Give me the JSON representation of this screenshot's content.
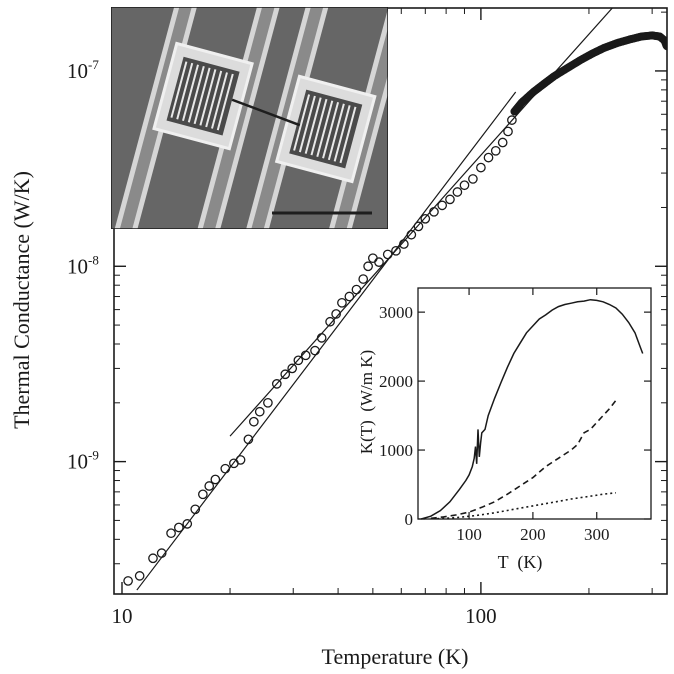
{
  "colors": {
    "ink": "#1a1a1a",
    "paper": "#ffffff",
    "photo_bg": "#6f6f6f",
    "photo_metal": "#d9d9d9"
  },
  "chart_data": [
    {
      "type": "scatter",
      "title": "",
      "xlabel": "Temperature (K)",
      "ylabel": "Thermal Conductance (W/K)",
      "xscale": "log",
      "yscale": "log",
      "xlim": [
        9.5,
        330
      ],
      "ylim": [
        2.1e-10,
        2.1e-07
      ],
      "xticks": [
        {
          "value": 10,
          "label": "10"
        },
        {
          "value": 100,
          "label": "100"
        }
      ],
      "yticks": [
        {
          "value": 1e-09,
          "base": "10",
          "exp": "-9"
        },
        {
          "value": 1e-08,
          "base": "10",
          "exp": "-8"
        },
        {
          "value": 1e-07,
          "base": "10",
          "exp": "-7"
        }
      ],
      "grid": false,
      "series": [
        {
          "marker": "open-circle",
          "points": [
            [
              10.4,
              2.45e-10
            ],
            [
              11.2,
              2.6e-10
            ],
            [
              12.2,
              3.2e-10
            ],
            [
              12.9,
              3.4e-10
            ],
            [
              13.7,
              4.3e-10
            ],
            [
              14.4,
              4.6e-10
            ],
            [
              15.2,
              4.8e-10
            ],
            [
              16.0,
              5.7e-10
            ],
            [
              16.8,
              6.8e-10
            ],
            [
              17.5,
              7.5e-10
            ],
            [
              18.2,
              8.1e-10
            ],
            [
              19.4,
              9.2e-10
            ],
            [
              20.5,
              9.8e-10
            ],
            [
              21.4,
              1.02e-09
            ],
            [
              22.5,
              1.3e-09
            ],
            [
              23.3,
              1.6e-09
            ],
            [
              24.2,
              1.8e-09
            ],
            [
              25.5,
              2e-09
            ],
            [
              27.0,
              2.5e-09
            ],
            [
              28.5,
              2.8e-09
            ],
            [
              29.8,
              3e-09
            ],
            [
              31.0,
              3.3e-09
            ],
            [
              32.5,
              3.5e-09
            ],
            [
              34.5,
              3.7e-09
            ],
            [
              36.0,
              4.3e-09
            ],
            [
              38.0,
              5.2e-09
            ],
            [
              39.5,
              5.7e-09
            ],
            [
              41.0,
              6.5e-09
            ],
            [
              43.0,
              7e-09
            ],
            [
              45.0,
              7.6e-09
            ],
            [
              47.0,
              8.6e-09
            ],
            [
              48.5,
              1e-08
            ],
            [
              50.0,
              1.1e-08
            ],
            [
              52.0,
              1.05e-08
            ],
            [
              55.0,
              1.15e-08
            ],
            [
              58.0,
              1.2e-08
            ],
            [
              61.0,
              1.3e-08
            ],
            [
              64.0,
              1.45e-08
            ],
            [
              67.0,
              1.6e-08
            ],
            [
              70.0,
              1.75e-08
            ],
            [
              74.0,
              1.9e-08
            ],
            [
              78.0,
              2.05e-08
            ],
            [
              82.0,
              2.2e-08
            ],
            [
              86.0,
              2.4e-08
            ],
            [
              90.0,
              2.6e-08
            ],
            [
              95.0,
              2.8e-08
            ],
            [
              100.0,
              3.2e-08
            ],
            [
              105.0,
              3.6e-08
            ],
            [
              110.0,
              3.9e-08
            ],
            [
              115.0,
              4.3e-08
            ],
            [
              119.0,
              4.9e-08
            ],
            [
              122.0,
              5.6e-08
            ]
          ]
        },
        {
          "marker": "filled-dense",
          "points": [
            [
              124,
              6.2e-08
            ],
            [
              130,
              6.9e-08
            ],
            [
              140,
              7.8e-08
            ],
            [
              150,
              8.6e-08
            ],
            [
              160,
              9.4e-08
            ],
            [
              175,
              1.04e-07
            ],
            [
              190,
              1.14e-07
            ],
            [
              205,
              1.23e-07
            ],
            [
              220,
              1.31e-07
            ],
            [
              240,
              1.39e-07
            ],
            [
              260,
              1.45e-07
            ],
            [
              280,
              1.5e-07
            ],
            [
              300,
              1.52e-07
            ],
            [
              315,
              1.5e-07
            ],
            [
              325,
              1.43e-07
            ],
            [
              330,
              1.33e-07
            ]
          ]
        }
      ],
      "guide_lines": [
        {
          "from": [
            11.0,
            2.2e-10
          ],
          "to": [
            125,
            7.8e-08
          ]
        },
        {
          "from": [
            20.0,
            1.35e-09
          ],
          "to": [
            235,
            2.15e-07
          ]
        }
      ]
    },
    {
      "type": "line",
      "xlabel": "T  (K)",
      "ylabel": "K(T)  (W/m K)",
      "xlim": [
        20,
        385
      ],
      "ylim": [
        0,
        3350
      ],
      "xticks": [
        100,
        200,
        300
      ],
      "yticks": [
        0,
        1000,
        2000,
        3000
      ],
      "series": [
        {
          "style": "solid",
          "points": [
            [
              25,
              0
            ],
            [
              40,
              40
            ],
            [
              55,
              120
            ],
            [
              70,
              250
            ],
            [
              85,
              430
            ],
            [
              95,
              560
            ],
            [
              100,
              640
            ],
            [
              105,
              760
            ],
            [
              108,
              880
            ],
            [
              110,
              1050
            ],
            [
              112,
              800
            ],
            [
              114,
              1300
            ],
            [
              116,
              900
            ],
            [
              118,
              1100
            ],
            [
              120,
              1250
            ],
            [
              125,
              1300
            ],
            [
              130,
              1500
            ],
            [
              140,
              1750
            ],
            [
              150,
              1980
            ],
            [
              160,
              2200
            ],
            [
              170,
              2400
            ],
            [
              180,
              2550
            ],
            [
              190,
              2700
            ],
            [
              200,
              2800
            ],
            [
              210,
              2900
            ],
            [
              220,
              2960
            ],
            [
              230,
              3030
            ],
            [
              240,
              3080
            ],
            [
              250,
              3110
            ],
            [
              260,
              3130
            ],
            [
              270,
              3150
            ],
            [
              280,
              3160
            ],
            [
              290,
              3180
            ],
            [
              300,
              3170
            ],
            [
              310,
              3150
            ],
            [
              320,
              3110
            ],
            [
              330,
              3060
            ],
            [
              340,
              2970
            ],
            [
              350,
              2850
            ],
            [
              360,
              2700
            ],
            [
              368,
              2500
            ],
            [
              372,
              2400
            ]
          ]
        },
        {
          "style": "dashed",
          "points": [
            [
              40,
              10
            ],
            [
              60,
              30
            ],
            [
              80,
              60
            ],
            [
              100,
              100
            ],
            [
              120,
              170
            ],
            [
              140,
              250
            ],
            [
              160,
              360
            ],
            [
              180,
              480
            ],
            [
              200,
              600
            ],
            [
              220,
              760
            ],
            [
              240,
              880
            ],
            [
              260,
              1000
            ],
            [
              270,
              1080
            ],
            [
              280,
              1250
            ],
            [
              290,
              1300
            ],
            [
              300,
              1400
            ],
            [
              310,
              1500
            ],
            [
              320,
              1600
            ],
            [
              330,
              1720
            ]
          ]
        },
        {
          "style": "dotted",
          "points": [
            [
              50,
              5
            ],
            [
              80,
              20
            ],
            [
              110,
              50
            ],
            [
              140,
              90
            ],
            [
              170,
              140
            ],
            [
              200,
              190
            ],
            [
              230,
              240
            ],
            [
              260,
              290
            ],
            [
              290,
              330
            ],
            [
              310,
              360
            ],
            [
              330,
              380
            ]
          ]
        }
      ]
    }
  ]
}
